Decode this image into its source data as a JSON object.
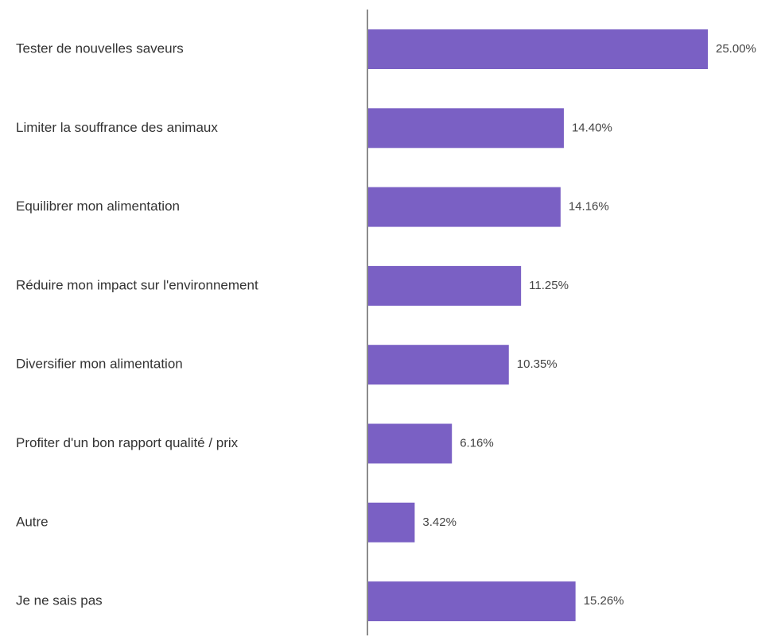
{
  "chart_data": {
    "type": "bar",
    "orientation": "horizontal",
    "categories": [
      "Tester de nouvelles saveurs",
      "Limiter la souffrance des animaux",
      "Equilibrer mon alimentation",
      "Réduire mon impact sur l'environnement",
      "Diversifier mon alimentation",
      "Profiter d'un bon rapport qualité / prix",
      "Autre",
      "Je ne sais pas"
    ],
    "values": [
      25.0,
      14.4,
      14.16,
      11.25,
      10.35,
      6.16,
      3.42,
      15.26
    ],
    "value_labels": [
      "25.00%",
      "14.40%",
      "14.16%",
      "11.25%",
      "10.35%",
      "6.16%",
      "3.42%",
      "15.26%"
    ],
    "color": "#7a60c4"
  }
}
